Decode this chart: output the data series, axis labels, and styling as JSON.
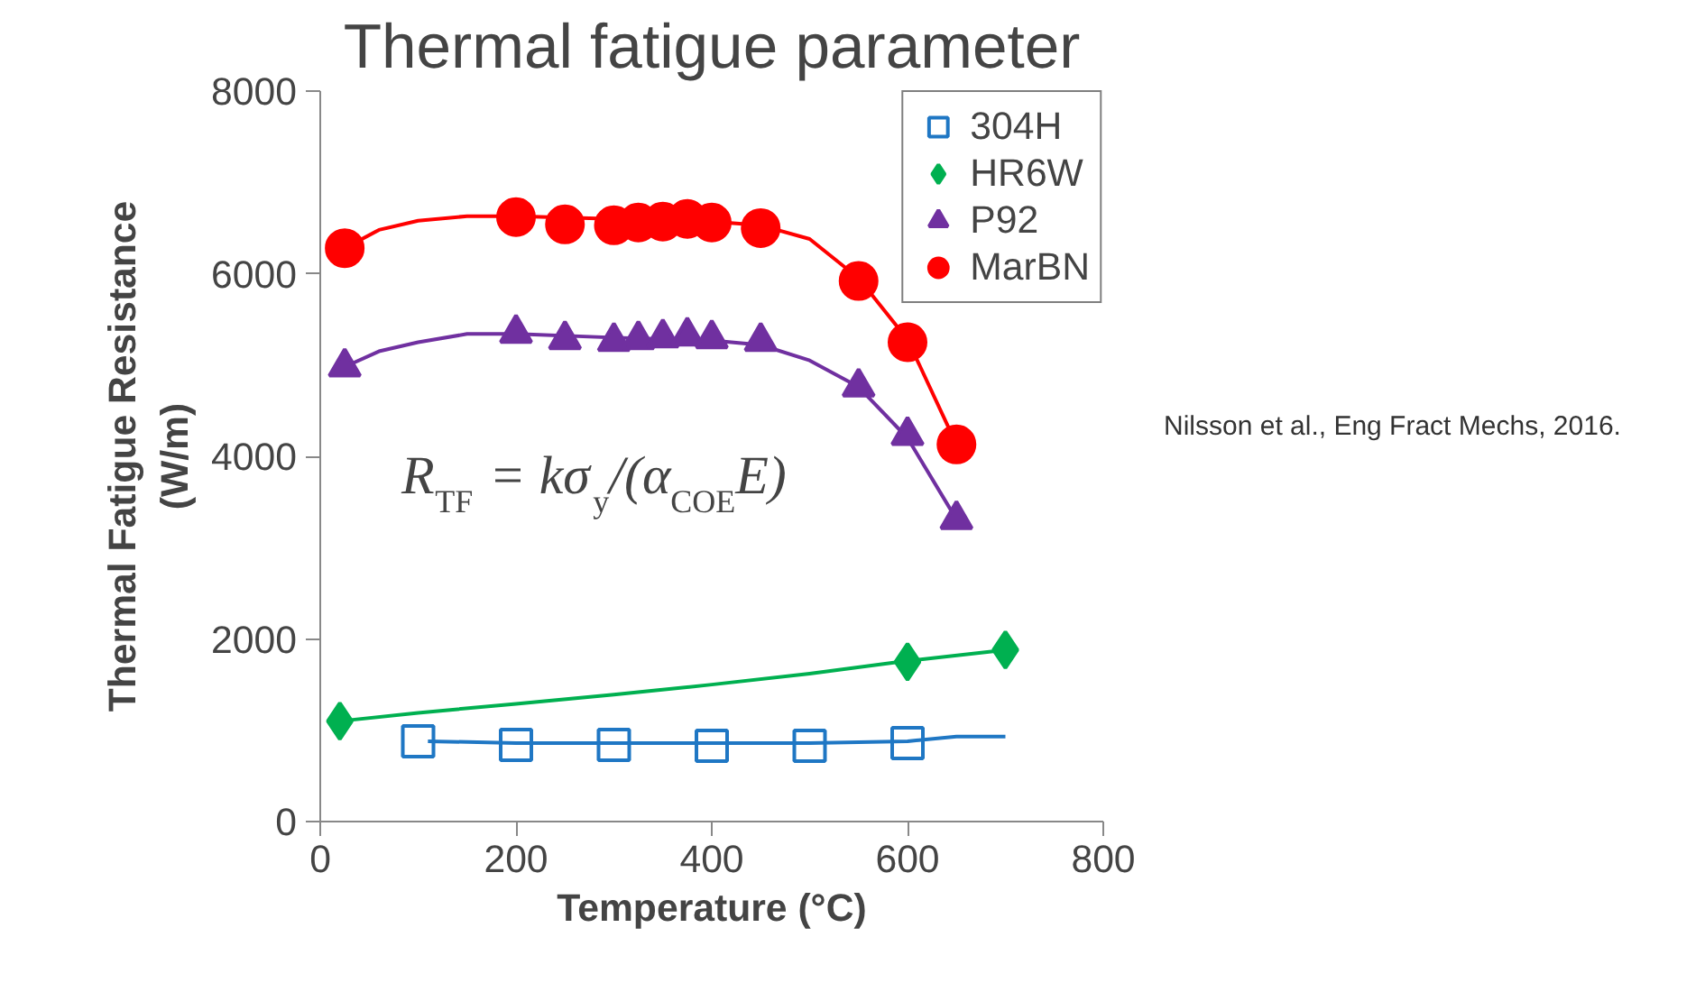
{
  "chart_data": {
    "type": "scatter",
    "title": "Thermal fatigue parameter",
    "xlabel": "Temperature (°C)",
    "ylabel": "Thermal Fatigue Resistance\n(W/m)",
    "xlim": [
      0,
      800
    ],
    "xticks": [
      0,
      200,
      400,
      600,
      800
    ],
    "ylim": [
      0,
      8000
    ],
    "yticks": [
      0,
      2000,
      4000,
      6000,
      8000
    ],
    "grid": false,
    "legend": "top right",
    "annotations": [
      "R$_{TF}$ = kσ$_{y}$/(α$_{COE}$E)",
      "Nilsson et al., Eng Fract Mechs, 2016."
    ],
    "series": [
      {
        "name": "304H",
        "marker": "square",
        "color": "#1f77c4",
        "x": [
          100,
          200,
          300,
          400,
          500,
          600
        ],
        "values": [
          880,
          840,
          840,
          830,
          830,
          860
        ]
      },
      {
        "name": "HR6W",
        "marker": "diamond",
        "color": "#00b050",
        "x": [
          20,
          600,
          700
        ],
        "values": [
          1100,
          1750,
          1880
        ]
      },
      {
        "name": "P92",
        "marker": "triangle",
        "color": "#7030a0",
        "x": [
          25,
          200,
          250,
          300,
          325,
          350,
          375,
          400,
          450,
          550,
          600,
          650
        ],
        "values": [
          4980,
          5350,
          5280,
          5260,
          5280,
          5300,
          5320,
          5290,
          5260,
          4760,
          4230,
          3310
        ]
      },
      {
        "name": "MarBN",
        "marker": "circle",
        "color": "#ff0000",
        "x": [
          25,
          200,
          250,
          300,
          325,
          350,
          375,
          400,
          450,
          550,
          600,
          650
        ],
        "values": [
          6280,
          6620,
          6540,
          6530,
          6560,
          6570,
          6600,
          6560,
          6500,
          5920,
          5250,
          4130
        ]
      },
      {
        "type": "line",
        "color": "#1f77c4",
        "x": [
          110,
          200,
          300,
          400,
          500,
          550,
          600,
          650,
          700
        ],
        "values": [
          880,
          860,
          860,
          860,
          860,
          870,
          880,
          930,
          930
        ]
      },
      {
        "type": "line",
        "color": "#00b050",
        "x": [
          20,
          100,
          200,
          300,
          400,
          500,
          600,
          700
        ],
        "values": [
          1100,
          1190,
          1290,
          1390,
          1500,
          1620,
          1760,
          1880
        ]
      },
      {
        "type": "line",
        "color": "#7030a0",
        "x": [
          25,
          60,
          100,
          150,
          200,
          300,
          400,
          450,
          500,
          550,
          600,
          650
        ],
        "values": [
          4980,
          5150,
          5250,
          5340,
          5340,
          5300,
          5270,
          5220,
          5050,
          4760,
          4200,
          3310
        ]
      },
      {
        "type": "line",
        "color": "#ff0000",
        "x": [
          25,
          60,
          100,
          150,
          200,
          300,
          400,
          450,
          500,
          550,
          600,
          650
        ],
        "values": [
          6280,
          6480,
          6580,
          6630,
          6630,
          6600,
          6570,
          6530,
          6380,
          5950,
          5280,
          4130
        ]
      }
    ]
  }
}
